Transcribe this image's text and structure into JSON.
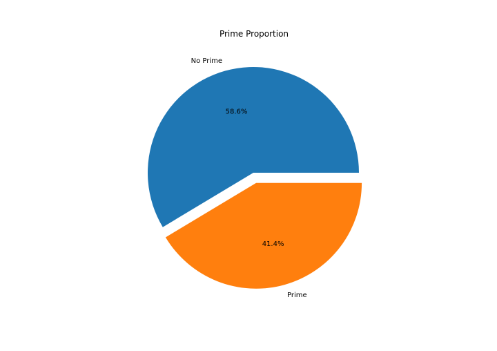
{
  "chart_data": {
    "type": "pie",
    "title": "Prime Proportion",
    "slices": [
      {
        "label": "No Prime",
        "value": 58.6,
        "pct_label": "58.6%",
        "color": "#1f77b4",
        "explode": false
      },
      {
        "label": "Prime",
        "value": 41.4,
        "pct_label": "41.4%",
        "color": "#ff7f0e",
        "explode": true
      }
    ],
    "start_angle_deg": 0,
    "direction": "counterclockwise"
  }
}
